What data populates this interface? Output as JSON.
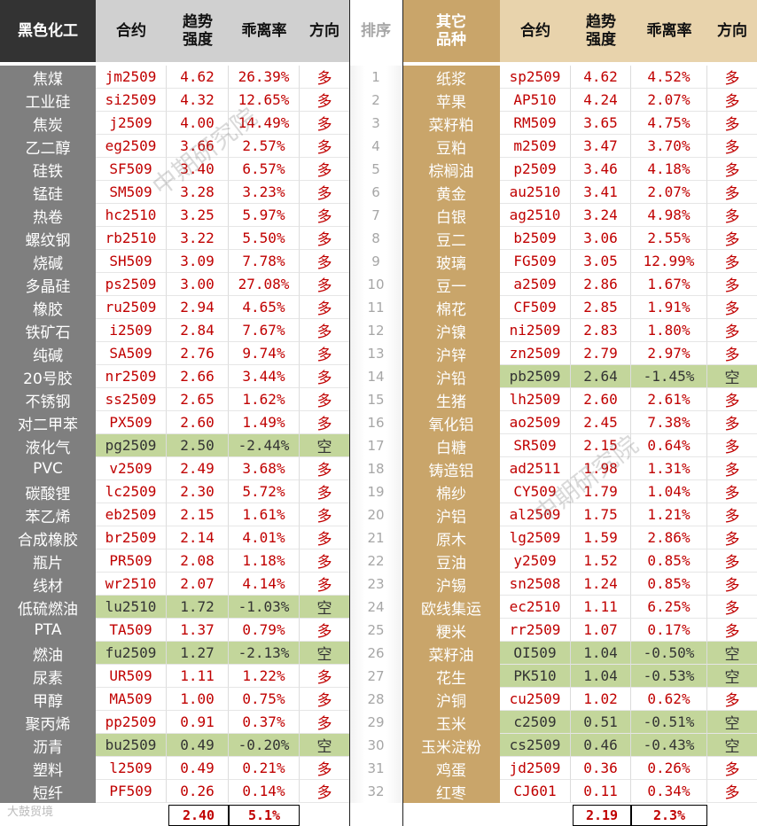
{
  "headers": {
    "left_group": "黑色化工",
    "contract": "合约",
    "trend": "趋势强度",
    "deviation": "乖离率",
    "direction": "方向",
    "rank": "排序",
    "right_group": "其它品种"
  },
  "left_rows": [
    {
      "name": "焦煤",
      "contract": "jm2509",
      "trend": "4.62",
      "dev": "26.39%",
      "dir": "多"
    },
    {
      "name": "工业硅",
      "contract": "si2509",
      "trend": "4.32",
      "dev": "12.65%",
      "dir": "多"
    },
    {
      "name": "焦炭",
      "contract": "j2509",
      "trend": "4.00",
      "dev": "14.49%",
      "dir": "多"
    },
    {
      "name": "乙二醇",
      "contract": "eg2509",
      "trend": "3.66",
      "dev": "2.57%",
      "dir": "多"
    },
    {
      "name": "硅铁",
      "contract": "SF509",
      "trend": "3.40",
      "dev": "6.57%",
      "dir": "多"
    },
    {
      "name": "锰硅",
      "contract": "SM509",
      "trend": "3.28",
      "dev": "3.23%",
      "dir": "多"
    },
    {
      "name": "热卷",
      "contract": "hc2510",
      "trend": "3.25",
      "dev": "5.97%",
      "dir": "多"
    },
    {
      "name": "螺纹钢",
      "contract": "rb2510",
      "trend": "3.22",
      "dev": "5.50%",
      "dir": "多"
    },
    {
      "name": "烧碱",
      "contract": "SH509",
      "trend": "3.09",
      "dev": "7.78%",
      "dir": "多"
    },
    {
      "name": "多晶硅",
      "contract": "ps2509",
      "trend": "3.00",
      "dev": "27.08%",
      "dir": "多"
    },
    {
      "name": "橡胶",
      "contract": "ru2509",
      "trend": "2.94",
      "dev": "4.65%",
      "dir": "多"
    },
    {
      "name": "铁矿石",
      "contract": "i2509",
      "trend": "2.84",
      "dev": "7.67%",
      "dir": "多"
    },
    {
      "name": "纯碱",
      "contract": "SA509",
      "trend": "2.76",
      "dev": "9.74%",
      "dir": "多"
    },
    {
      "name": "20号胶",
      "contract": "nr2509",
      "trend": "2.66",
      "dev": "3.44%",
      "dir": "多"
    },
    {
      "name": "不锈钢",
      "contract": "ss2509",
      "trend": "2.65",
      "dev": "1.62%",
      "dir": "多"
    },
    {
      "name": "对二甲苯",
      "contract": "PX509",
      "trend": "2.60",
      "dev": "1.49%",
      "dir": "多"
    },
    {
      "name": "液化气",
      "contract": "pg2509",
      "trend": "2.50",
      "dev": "-2.44%",
      "dir": "空"
    },
    {
      "name": "PVC",
      "contract": "v2509",
      "trend": "2.49",
      "dev": "3.68%",
      "dir": "多"
    },
    {
      "name": "碳酸锂",
      "contract": "lc2509",
      "trend": "2.30",
      "dev": "5.72%",
      "dir": "多"
    },
    {
      "name": "苯乙烯",
      "contract": "eb2509",
      "trend": "2.15",
      "dev": "1.61%",
      "dir": "多"
    },
    {
      "name": "合成橡胶",
      "contract": "br2509",
      "trend": "2.14",
      "dev": "4.01%",
      "dir": "多"
    },
    {
      "name": "瓶片",
      "contract": "PR509",
      "trend": "2.08",
      "dev": "1.18%",
      "dir": "多"
    },
    {
      "name": "线材",
      "contract": "wr2510",
      "trend": "2.07",
      "dev": "4.14%",
      "dir": "多"
    },
    {
      "name": "低硫燃油",
      "contract": "lu2510",
      "trend": "1.72",
      "dev": "-1.03%",
      "dir": "空"
    },
    {
      "name": "PTA",
      "contract": "TA509",
      "trend": "1.37",
      "dev": "0.79%",
      "dir": "多"
    },
    {
      "name": "燃油",
      "contract": "fu2509",
      "trend": "1.27",
      "dev": "-2.13%",
      "dir": "空"
    },
    {
      "name": "尿素",
      "contract": "UR509",
      "trend": "1.11",
      "dev": "1.22%",
      "dir": "多"
    },
    {
      "name": "甲醇",
      "contract": "MA509",
      "trend": "1.00",
      "dev": "0.75%",
      "dir": "多"
    },
    {
      "name": "聚丙烯",
      "contract": "pp2509",
      "trend": "0.91",
      "dev": "0.37%",
      "dir": "多"
    },
    {
      "name": "沥青",
      "contract": "bu2509",
      "trend": "0.49",
      "dev": "-0.20%",
      "dir": "空"
    },
    {
      "name": "塑料",
      "contract": "l2509",
      "trend": "0.49",
      "dev": "0.21%",
      "dir": "多"
    },
    {
      "name": "短纤",
      "contract": "PF509",
      "trend": "0.26",
      "dev": "0.14%",
      "dir": "多"
    }
  ],
  "right_rows": [
    {
      "name": "纸浆",
      "contract": "sp2509",
      "trend": "4.62",
      "dev": "4.52%",
      "dir": "多"
    },
    {
      "name": "苹果",
      "contract": "AP510",
      "trend": "4.24",
      "dev": "2.07%",
      "dir": "多"
    },
    {
      "name": "菜籽粕",
      "contract": "RM509",
      "trend": "3.65",
      "dev": "4.75%",
      "dir": "多"
    },
    {
      "name": "豆粕",
      "contract": "m2509",
      "trend": "3.47",
      "dev": "3.70%",
      "dir": "多"
    },
    {
      "name": "棕榈油",
      "contract": "p2509",
      "trend": "3.46",
      "dev": "4.18%",
      "dir": "多"
    },
    {
      "name": "黄金",
      "contract": "au2510",
      "trend": "3.41",
      "dev": "2.07%",
      "dir": "多"
    },
    {
      "name": "白银",
      "contract": "ag2510",
      "trend": "3.24",
      "dev": "4.98%",
      "dir": "多"
    },
    {
      "name": "豆二",
      "contract": "b2509",
      "trend": "3.06",
      "dev": "2.55%",
      "dir": "多"
    },
    {
      "name": "玻璃",
      "contract": "FG509",
      "trend": "3.05",
      "dev": "12.99%",
      "dir": "多"
    },
    {
      "name": "豆一",
      "contract": "a2509",
      "trend": "2.86",
      "dev": "1.67%",
      "dir": "多"
    },
    {
      "name": "棉花",
      "contract": "CF509",
      "trend": "2.85",
      "dev": "1.91%",
      "dir": "多"
    },
    {
      "name": "沪镍",
      "contract": "ni2509",
      "trend": "2.83",
      "dev": "1.80%",
      "dir": "多"
    },
    {
      "name": "沪锌",
      "contract": "zn2509",
      "trend": "2.79",
      "dev": "2.97%",
      "dir": "多"
    },
    {
      "name": "沪铅",
      "contract": "pb2509",
      "trend": "2.64",
      "dev": "-1.45%",
      "dir": "空"
    },
    {
      "name": "生猪",
      "contract": "lh2509",
      "trend": "2.60",
      "dev": "2.61%",
      "dir": "多"
    },
    {
      "name": "氧化铝",
      "contract": "ao2509",
      "trend": "2.45",
      "dev": "7.38%",
      "dir": "多"
    },
    {
      "name": "白糖",
      "contract": "SR509",
      "trend": "2.15",
      "dev": "0.64%",
      "dir": "多"
    },
    {
      "name": "铸造铝",
      "contract": "ad2511",
      "trend": "1.98",
      "dev": "1.31%",
      "dir": "多"
    },
    {
      "name": "棉纱",
      "contract": "CY509",
      "trend": "1.79",
      "dev": "1.04%",
      "dir": "多"
    },
    {
      "name": "沪铝",
      "contract": "al2509",
      "trend": "1.75",
      "dev": "1.21%",
      "dir": "多"
    },
    {
      "name": "原木",
      "contract": "lg2509",
      "trend": "1.59",
      "dev": "2.86%",
      "dir": "多"
    },
    {
      "name": "豆油",
      "contract": "y2509",
      "trend": "1.52",
      "dev": "0.85%",
      "dir": "多"
    },
    {
      "name": "沪锡",
      "contract": "sn2508",
      "trend": "1.24",
      "dev": "0.85%",
      "dir": "多"
    },
    {
      "name": "欧线集运",
      "contract": "ec2510",
      "trend": "1.11",
      "dev": "6.25%",
      "dir": "多"
    },
    {
      "name": "粳米",
      "contract": "rr2509",
      "trend": "1.07",
      "dev": "0.17%",
      "dir": "多"
    },
    {
      "name": "菜籽油",
      "contract": "OI509",
      "trend": "1.04",
      "dev": "-0.50%",
      "dir": "空"
    },
    {
      "name": "花生",
      "contract": "PK510",
      "trend": "1.04",
      "dev": "-0.53%",
      "dir": "空"
    },
    {
      "name": "沪铜",
      "contract": "cu2509",
      "trend": "1.02",
      "dev": "0.62%",
      "dir": "多"
    },
    {
      "name": "玉米",
      "contract": "c2509",
      "trend": "0.51",
      "dev": "-0.51%",
      "dir": "空"
    },
    {
      "name": "玉米淀粉",
      "contract": "cs2509",
      "trend": "0.46",
      "dev": "-0.43%",
      "dir": "空"
    },
    {
      "name": "鸡蛋",
      "contract": "jd2509",
      "trend": "0.36",
      "dev": "0.26%",
      "dir": "多"
    },
    {
      "name": "红枣",
      "contract": "CJ601",
      "trend": "0.11",
      "dev": "0.34%",
      "dir": "多"
    }
  ],
  "left_summary": {
    "trend": "2.40",
    "dev": "5.1%"
  },
  "right_summary": {
    "trend": "2.19",
    "dev": "2.3%"
  },
  "watermark": "中期研究院",
  "logo_text": "大鼓贸境",
  "colors": {
    "long": "#c00000",
    "short_bg": "#c3d69b",
    "left_name_bg": "#7f7f7f",
    "right_name_bg": "#c9a56a",
    "left_header_bg": "#333333"
  }
}
